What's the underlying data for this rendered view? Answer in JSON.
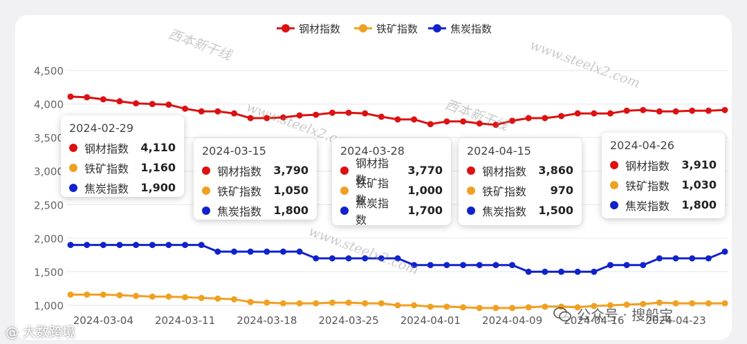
{
  "chart_data": {
    "type": "line",
    "x": [
      "2024-02-29",
      "2024-03-01",
      "2024-03-04",
      "2024-03-05",
      "2024-03-06",
      "2024-03-07",
      "2024-03-08",
      "2024-03-11",
      "2024-03-12",
      "2024-03-13",
      "2024-03-14",
      "2024-03-15",
      "2024-03-18",
      "2024-03-19",
      "2024-03-20",
      "2024-03-21",
      "2024-03-22",
      "2024-03-25",
      "2024-03-26",
      "2024-03-27",
      "2024-03-28",
      "2024-03-29",
      "2024-04-01",
      "2024-04-02",
      "2024-04-03",
      "2024-04-07",
      "2024-04-08",
      "2024-04-09",
      "2024-04-10",
      "2024-04-11",
      "2024-04-12",
      "2024-04-15",
      "2024-04-16",
      "2024-04-17",
      "2024-04-18",
      "2024-04-19",
      "2024-04-22",
      "2024-04-23",
      "2024-04-24",
      "2024-04-25",
      "2024-04-26"
    ],
    "xticks": [
      "2024-03-04",
      "2024-03-11",
      "2024-03-18",
      "2024-03-25",
      "2024-04-01",
      "2024-04-09",
      "2024-04-16",
      "2024-04-23"
    ],
    "series": [
      {
        "name": "钢材指数",
        "color": "#dd1111",
        "values": [
          4110,
          4100,
          4070,
          4040,
          4010,
          4000,
          3990,
          3930,
          3890,
          3890,
          3860,
          3790,
          3790,
          3800,
          3830,
          3840,
          3870,
          3870,
          3860,
          3810,
          3770,
          3770,
          3700,
          3740,
          3740,
          3710,
          3690,
          3750,
          3790,
          3790,
          3820,
          3860,
          3860,
          3860,
          3900,
          3910,
          3890,
          3890,
          3900,
          3900,
          3910
        ]
      },
      {
        "name": "铁矿指数",
        "color": "#f0a020",
        "values": [
          1160,
          1160,
          1160,
          1150,
          1140,
          1130,
          1130,
          1120,
          1110,
          1100,
          1090,
          1050,
          1040,
          1030,
          1030,
          1030,
          1040,
          1040,
          1030,
          1030,
          1000,
          1000,
          980,
          980,
          970,
          960,
          960,
          960,
          970,
          980,
          980,
          970,
          990,
          1000,
          1010,
          1020,
          1040,
          1030,
          1030,
          1030,
          1030
        ]
      },
      {
        "name": "焦炭指数",
        "color": "#1122cc",
        "values": [
          1900,
          1900,
          1900,
          1900,
          1900,
          1900,
          1900,
          1900,
          1900,
          1800,
          1800,
          1800,
          1800,
          1800,
          1800,
          1700,
          1700,
          1700,
          1700,
          1700,
          1700,
          1600,
          1600,
          1600,
          1600,
          1600,
          1600,
          1600,
          1500,
          1500,
          1500,
          1500,
          1500,
          1600,
          1600,
          1600,
          1700,
          1700,
          1700,
          1700,
          1800
        ]
      }
    ],
    "yticks": [
      "1,000",
      "1,500",
      "2,000",
      "2,500",
      "3,000",
      "3,500",
      "4,000",
      "4,500"
    ],
    "ylim": [
      900,
      4500
    ],
    "legend": "top-center",
    "grid": true
  },
  "tooltips": [
    {
      "date": "2024-02-29",
      "rows": [
        {
          "name": "钢材指数",
          "value": "4,110"
        },
        {
          "name": "铁矿指数",
          "value": "1,160"
        },
        {
          "name": "焦炭指数",
          "value": "1,900"
        }
      ]
    },
    {
      "date": "2024-03-15",
      "rows": [
        {
          "name": "钢材指数",
          "value": "3,790"
        },
        {
          "name": "铁矿指数",
          "value": "1,050"
        },
        {
          "name": "焦炭指数",
          "value": "1,800"
        }
      ]
    },
    {
      "date": "2024-03-28",
      "rows": [
        {
          "name": "钢材指数",
          "value": "3,770"
        },
        {
          "name": "铁矿指数",
          "value": "1,000"
        },
        {
          "name": "焦炭指数",
          "value": "1,700"
        }
      ]
    },
    {
      "date": "2024-04-15",
      "rows": [
        {
          "name": "钢材指数",
          "value": "3,860"
        },
        {
          "name": "铁矿指数",
          "value": "970"
        },
        {
          "name": "焦炭指数",
          "value": "1,500"
        }
      ]
    },
    {
      "date": "2024-04-26",
      "rows": [
        {
          "name": "钢材指数",
          "value": "3,910"
        },
        {
          "name": "铁矿指数",
          "value": "1,030"
        },
        {
          "name": "焦炭指数",
          "value": "1,800"
        }
      ]
    }
  ],
  "watermarks": {
    "site": "www.steelx2.com",
    "brand": "西本新干线"
  },
  "footer": {
    "left": "@ 大数跨境",
    "right": "公众号 · 搜船宝"
  }
}
